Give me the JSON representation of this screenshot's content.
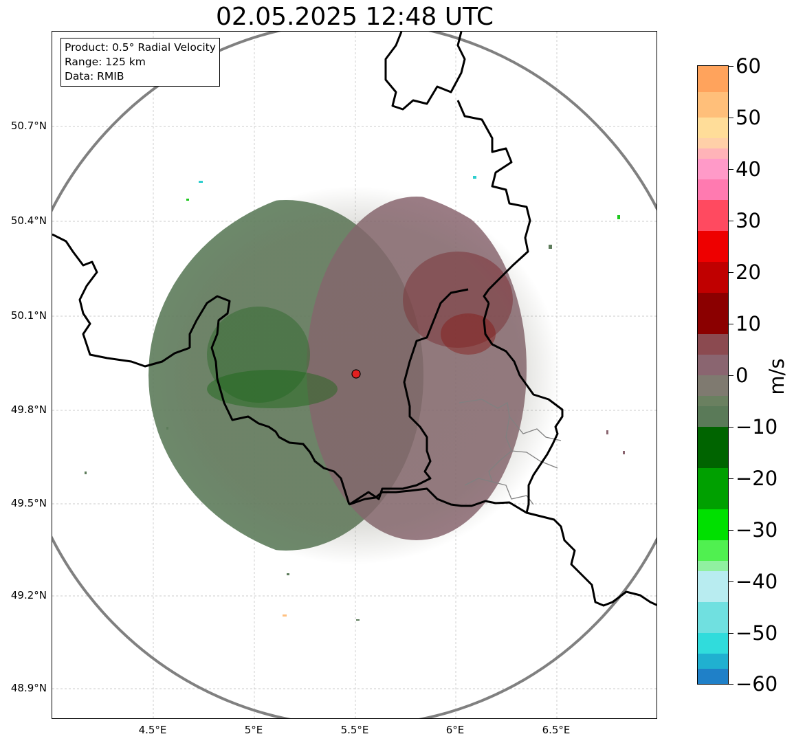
{
  "title": "02.05.2025 12:48 UTC",
  "info": {
    "product": "Product: 0.5° Radial Velocity",
    "range": "Range: 125 km",
    "source": "Data: RMIB"
  },
  "axes": {
    "lat_ticks": [
      "50.7°N",
      "50.4°N",
      "50.1°N",
      "49.8°N",
      "49.5°N",
      "49.2°N",
      "48.9°N"
    ],
    "lon_ticks": [
      "4.5°E",
      "5°E",
      "5.5°E",
      "6°E",
      "6.5°E"
    ]
  },
  "colorbar": {
    "unit": "m/s",
    "ticks": [
      "60",
      "50",
      "40",
      "30",
      "20",
      "10",
      "0",
      "−10",
      "−20",
      "−30",
      "−40",
      "−50",
      "−60"
    ],
    "range": [
      -60,
      60
    ]
  },
  "radar": {
    "lat": 49.91,
    "lon": 5.5,
    "range_km": 125
  },
  "colors": {
    "approaching_strong": "#006400",
    "approaching_weak": "#5d7c5b",
    "receding_weak": "#8a6570",
    "receding_strong": "#8b0000",
    "border": "#000000",
    "range_ring": "#808080"
  }
}
